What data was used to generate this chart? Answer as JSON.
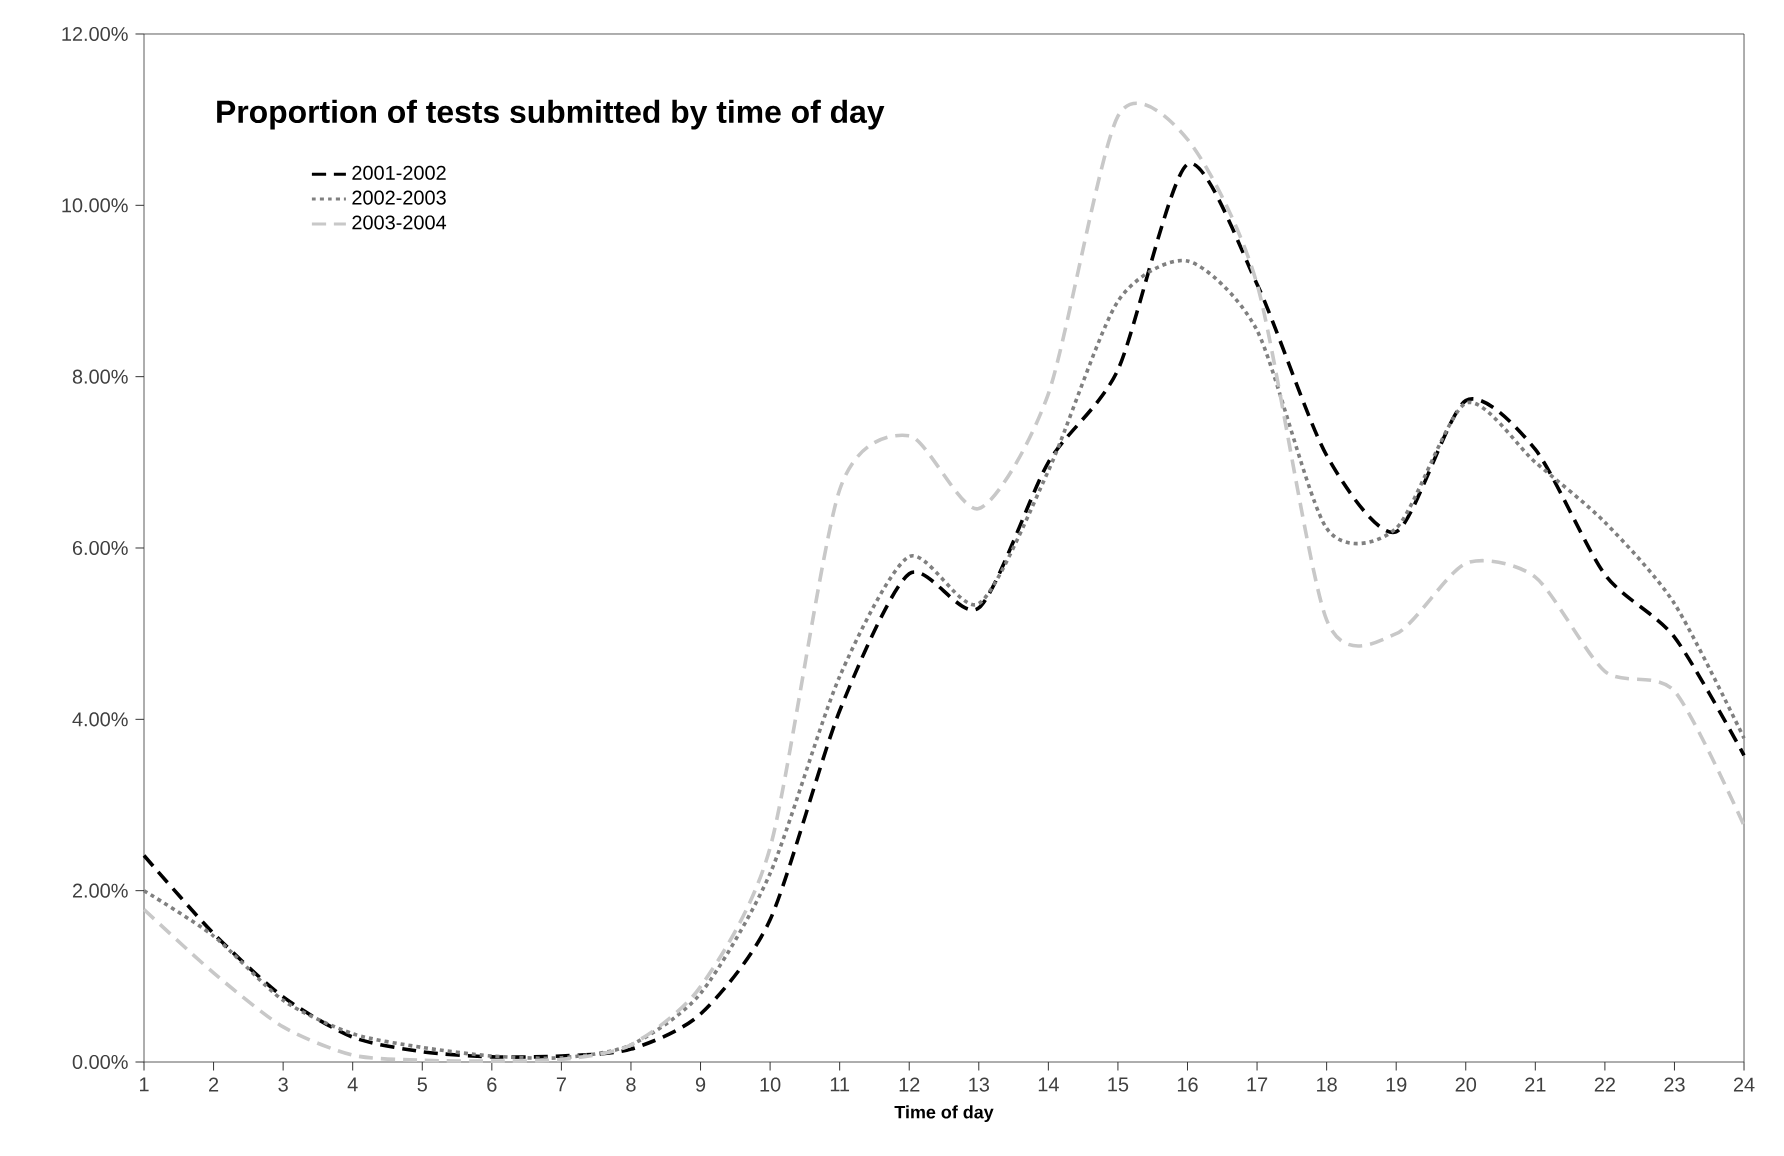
{
  "chart_data": {
    "type": "line",
    "title": "Proportion of tests submitted by time of day",
    "xlabel": "Time of day",
    "x": [
      1,
      2,
      3,
      4,
      5,
      6,
      7,
      8,
      9,
      10,
      11,
      12,
      13,
      14,
      15,
      16,
      17,
      18,
      19,
      20,
      21,
      22,
      23,
      24
    ],
    "series": [
      {
        "name": "2001-2002",
        "color": "#000000",
        "line_style": "dashed",
        "values": [
          2.41,
          1.5,
          0.76,
          0.29,
          0.12,
          0.06,
          0.07,
          0.15,
          0.56,
          1.66,
          4.1,
          5.7,
          5.3,
          7.0,
          8.08,
          10.48,
          9.08,
          7.08,
          6.19,
          7.72,
          7.15,
          5.69,
          4.96,
          3.58
        ]
      },
      {
        "name": "2002-2003",
        "color": "#808080",
        "line_style": "dotted",
        "values": [
          2.0,
          1.47,
          0.72,
          0.33,
          0.17,
          0.07,
          0.05,
          0.2,
          0.8,
          2.2,
          4.5,
          5.9,
          5.35,
          6.9,
          8.88,
          9.35,
          8.54,
          6.23,
          6.23,
          7.69,
          7.0,
          6.3,
          5.35,
          3.78
        ]
      },
      {
        "name": "2003-2004",
        "color": "#c8c8c8",
        "line_style": "dashed",
        "values": [
          1.78,
          1.04,
          0.41,
          0.08,
          0.02,
          0.01,
          0.03,
          0.2,
          0.88,
          2.5,
          6.68,
          7.31,
          6.46,
          7.8,
          11.04,
          10.77,
          9.08,
          5.16,
          5.0,
          5.82,
          5.66,
          4.56,
          4.33,
          2.76
        ]
      }
    ],
    "xlim": [
      1,
      24
    ],
    "ylim": [
      0,
      12
    ],
    "xticks": [
      1,
      2,
      3,
      4,
      5,
      6,
      7,
      8,
      9,
      10,
      11,
      12,
      13,
      14,
      15,
      16,
      17,
      18,
      19,
      20,
      21,
      22,
      23,
      24
    ],
    "yticks": [
      {
        "value": 0,
        "label": "0.00%"
      },
      {
        "value": 2,
        "label": "2.00%"
      },
      {
        "value": 4,
        "label": "4.00%"
      },
      {
        "value": 6,
        "label": "6.00%"
      },
      {
        "value": 8,
        "label": "8.00%"
      },
      {
        "value": 10,
        "label": "10.00%"
      },
      {
        "value": 12,
        "label": "12.00%"
      }
    ],
    "grid": false,
    "legend": "top left"
  }
}
